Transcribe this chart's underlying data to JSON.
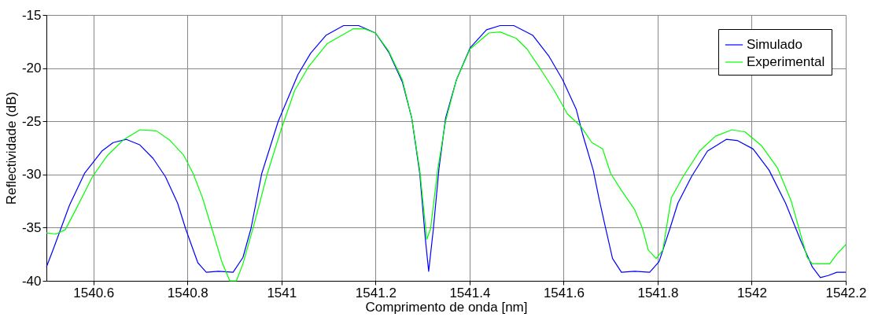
{
  "chart_data": {
    "type": "line",
    "xlabel": "Comprimento de onda [nm]",
    "ylabel": "Reflectividade (dB)",
    "xlim": [
      1540.5,
      1542.2
    ],
    "xticks": [
      1540.6,
      1540.8,
      1541,
      1541.2,
      1541.4,
      1541.6,
      1541.8,
      1542,
      1542.2
    ],
    "ylim": [
      -40,
      -15
    ],
    "yticks": [
      -40,
      -35,
      -30,
      -25,
      -20,
      -15
    ],
    "grid": true,
    "legend": "top right",
    "marker": "none",
    "line_style": "solid",
    "series": [
      {
        "name": "Simulado",
        "color": "#0000ff",
        "x": [
          1540.5,
          1540.514,
          1540.549,
          1540.581,
          1540.618,
          1540.642,
          1540.67,
          1540.698,
          1540.727,
          1540.753,
          1540.779,
          1540.796,
          1540.822,
          1540.84,
          1540.866,
          1540.897,
          1540.918,
          1540.935,
          1540.958,
          1540.993,
          1541.035,
          1541.062,
          1541.095,
          1541.132,
          1541.164,
          1541.2,
          1541.228,
          1541.257,
          1541.277,
          1541.294,
          1541.306,
          1541.313,
          1541.323,
          1541.335,
          1541.349,
          1541.372,
          1541.401,
          1541.436,
          1541.465,
          1541.494,
          1541.534,
          1541.569,
          1541.598,
          1541.627,
          1541.641,
          1541.663,
          1541.675,
          1541.688,
          1541.704,
          1541.723,
          1541.751,
          1541.783,
          1541.803,
          1541.826,
          1541.843,
          1541.872,
          1541.906,
          1541.946,
          1541.969,
          1542.003,
          1542.037,
          1542.072,
          1542.106,
          1542.129,
          1542.146,
          1542.163,
          1542.181,
          1542.2
        ],
        "values": [
          -38.7,
          -37.1,
          -32.9,
          -29.9,
          -27.8,
          -27.0,
          -26.7,
          -27.2,
          -28.5,
          -30.2,
          -32.7,
          -35.1,
          -38.3,
          -39.2,
          -39.1,
          -39.2,
          -37.8,
          -35.1,
          -29.9,
          -25.0,
          -20.6,
          -18.6,
          -16.9,
          -16.0,
          -16.0,
          -16.7,
          -18.5,
          -21.3,
          -24.7,
          -29.9,
          -36.1,
          -39.1,
          -35.1,
          -29.4,
          -24.7,
          -21.1,
          -18.1,
          -16.4,
          -16.0,
          -16.0,
          -16.9,
          -18.9,
          -21.1,
          -23.9,
          -26.3,
          -29.6,
          -32.2,
          -34.8,
          -37.9,
          -39.2,
          -39.1,
          -39.2,
          -38.2,
          -35.1,
          -32.7,
          -30.2,
          -27.8,
          -26.7,
          -26.8,
          -27.6,
          -29.6,
          -32.7,
          -36.4,
          -38.7,
          -39.7,
          -39.5,
          -39.2,
          -39.2
        ]
      },
      {
        "name": "Experimental",
        "color": "#00ff00",
        "x": [
          1540.5,
          1540.52,
          1540.54,
          1540.566,
          1540.598,
          1540.63,
          1540.665,
          1540.699,
          1540.734,
          1540.763,
          1540.792,
          1540.812,
          1540.832,
          1540.852,
          1540.873,
          1540.89,
          1540.904,
          1540.918,
          1540.941,
          1540.97,
          1540.999,
          1541.028,
          1541.057,
          1541.097,
          1541.153,
          1541.176,
          1541.2,
          1541.228,
          1541.257,
          1541.277,
          1541.294,
          1541.309,
          1541.317,
          1541.332,
          1541.349,
          1541.372,
          1541.401,
          1541.441,
          1541.465,
          1541.499,
          1541.522,
          1541.551,
          1541.58,
          1541.608,
          1541.637,
          1541.66,
          1541.683,
          1541.7,
          1541.723,
          1541.751,
          1541.768,
          1541.78,
          1541.797,
          1541.811,
          1541.829,
          1541.854,
          1541.889,
          1541.923,
          1541.958,
          1541.986,
          1542.021,
          1542.055,
          1542.084,
          1542.118,
          1542.129,
          1542.166,
          1542.181,
          1542.2
        ],
        "values": [
          -35.5,
          -35.6,
          -35.2,
          -33.0,
          -30.2,
          -28.2,
          -26.7,
          -25.8,
          -25.9,
          -26.8,
          -28.2,
          -29.9,
          -32.2,
          -35.1,
          -38.2,
          -40.0,
          -40.0,
          -38.4,
          -34.8,
          -29.9,
          -25.8,
          -22.1,
          -19.9,
          -17.7,
          -16.3,
          -16.3,
          -16.7,
          -18.4,
          -21.1,
          -24.7,
          -29.6,
          -36.1,
          -35.1,
          -29.6,
          -25.0,
          -21.1,
          -18.2,
          -16.7,
          -16.6,
          -17.2,
          -18.2,
          -20.1,
          -22.1,
          -24.3,
          -25.5,
          -27.0,
          -27.6,
          -29.9,
          -31.5,
          -33.3,
          -35.1,
          -37.1,
          -37.9,
          -37.1,
          -32.2,
          -30.2,
          -27.8,
          -26.4,
          -25.8,
          -26.0,
          -27.3,
          -29.4,
          -32.5,
          -37.8,
          -38.4,
          -38.4,
          -37.5,
          -36.6
        ]
      }
    ]
  }
}
